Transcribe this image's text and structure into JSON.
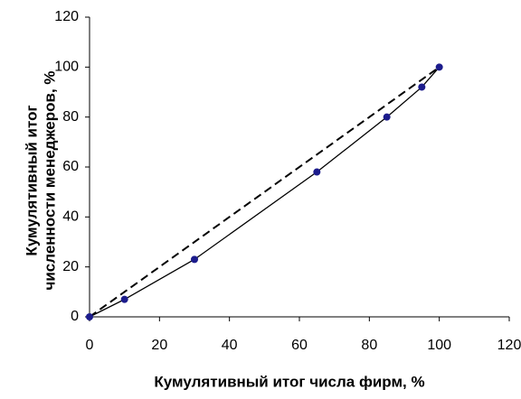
{
  "chart_data": {
    "type": "line",
    "xlabel": "Кумулятивный итог числа фирм, %",
    "ylabel": [
      "Кумулятивный итог",
      "численности менеджеров, %"
    ],
    "x": [
      0,
      10,
      30,
      65,
      85,
      95,
      100
    ],
    "series": [
      {
        "color": "#000000",
        "marker_color": "#1c1c8c",
        "values": [
          0,
          7,
          23,
          58,
          80,
          92,
          100
        ]
      }
    ],
    "equality_line": {
      "x": [
        0,
        100
      ],
      "values": [
        0,
        100
      ],
      "color": "#000000",
      "dashed": true
    },
    "xlim": [
      0,
      120
    ],
    "xticks": [
      0,
      20,
      40,
      60,
      80,
      100,
      120
    ],
    "ylim": [
      0,
      120
    ],
    "yticks": [
      0,
      20,
      40,
      60,
      80,
      100,
      120
    ],
    "grid": false
  }
}
